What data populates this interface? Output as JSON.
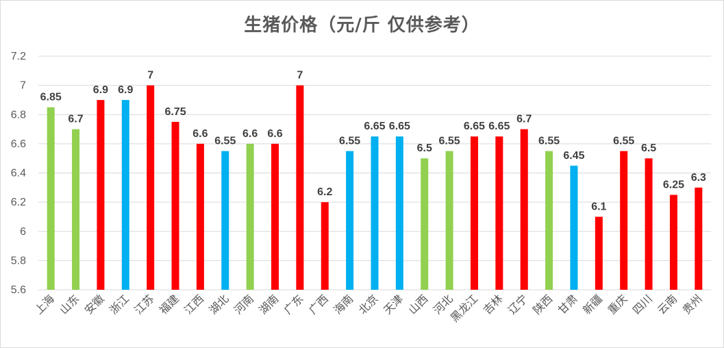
{
  "chart_data": {
    "type": "bar",
    "title": "生猪价格（元/斤 仅供参考）",
    "xlabel": "",
    "ylabel": "",
    "ylim": [
      5.6,
      7.2
    ],
    "yticks": [
      "5.6",
      "5.8",
      "6",
      "6.2",
      "6.4",
      "6.6",
      "6.8",
      "7",
      "7.2"
    ],
    "grid": true,
    "legend": "none",
    "colors": {
      "green": "#92d050",
      "red": "#ff0000",
      "blue": "#00b0f0"
    },
    "categories": [
      "上海",
      "山东",
      "安徽",
      "浙江",
      "江苏",
      "福建",
      "江西",
      "湖北",
      "河南",
      "湖南",
      "广东",
      "广西",
      "海南",
      "北京",
      "天津",
      "山西",
      "河北",
      "黑龙江",
      "吉林",
      "辽宁",
      "陕西",
      "甘肃",
      "新疆",
      "重庆",
      "四川",
      "云南",
      "贵州"
    ],
    "values": [
      6.85,
      6.7,
      6.9,
      6.9,
      7,
      6.75,
      6.6,
      6.55,
      6.6,
      6.6,
      7,
      6.2,
      6.55,
      6.65,
      6.65,
      6.5,
      6.55,
      6.65,
      6.65,
      6.7,
      6.55,
      6.45,
      6.1,
      6.55,
      6.5,
      6.25,
      6.3
    ],
    "value_labels": [
      "6.85",
      "6.7",
      "6.9",
      "6.9",
      "7",
      "6.75",
      "6.6",
      "6.55",
      "6.6",
      "6.6",
      "7",
      "6.2",
      "6.55",
      "6.65",
      "6.65",
      "6.5",
      "6.55",
      "6.65",
      "6.65",
      "6.7",
      "6.55",
      "6.45",
      "6.1",
      "6.55",
      "6.5",
      "6.25",
      "6.3"
    ],
    "bar_colors": [
      "green",
      "green",
      "red",
      "blue",
      "red",
      "red",
      "red",
      "blue",
      "green",
      "red",
      "red",
      "red",
      "blue",
      "blue",
      "blue",
      "green",
      "green",
      "red",
      "red",
      "red",
      "green",
      "blue",
      "red",
      "red",
      "red",
      "red",
      "red"
    ]
  }
}
